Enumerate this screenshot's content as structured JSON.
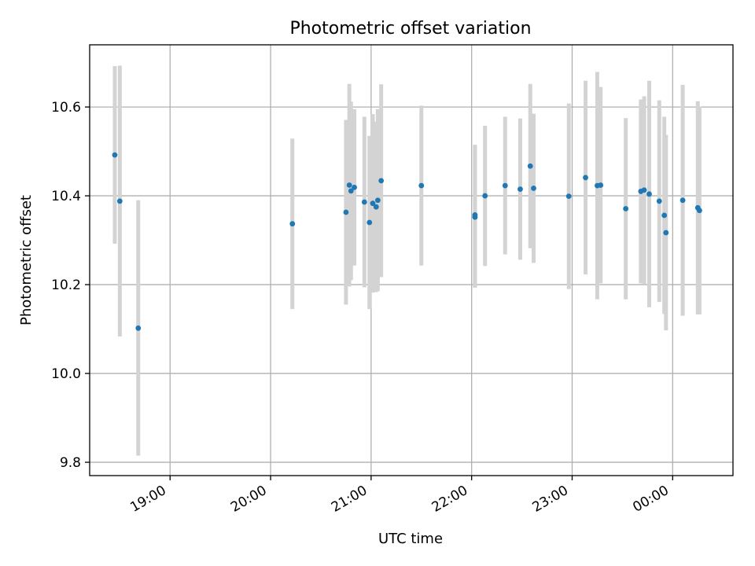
{
  "chart_data": {
    "type": "scatter",
    "title": "Photometric offset variation",
    "xlabel": "UTC time",
    "ylabel": "Photometric offset",
    "xlim": [
      "18:12",
      "00:36"
    ],
    "ylim": [
      9.77,
      10.74
    ],
    "grid": true,
    "x_ticks": [
      "19:00",
      "20:00",
      "21:00",
      "22:00",
      "23:00",
      "00:00"
    ],
    "y_ticks": [
      "9.8",
      "10.0",
      "10.2",
      "10.4",
      "10.6"
    ],
    "colors": {
      "point": "#1f77b4",
      "errorbar": "#d3d3d3",
      "grid": "#b0b0b0"
    },
    "series": [
      {
        "marker": "point",
        "error_bars": "vertical",
        "points": [
          {
            "t": "18:27",
            "y": 10.492,
            "lo": 10.292,
            "hi": 10.692
          },
          {
            "t": "18:30",
            "y": 10.388,
            "lo": 10.083,
            "hi": 10.693
          },
          {
            "t": "18:41",
            "y": 10.102,
            "lo": 9.815,
            "hi": 10.39
          },
          {
            "t": "20:13",
            "y": 10.337,
            "lo": 10.145,
            "hi": 10.529
          },
          {
            "t": "20:45",
            "y": 10.363,
            "lo": 10.155,
            "hi": 10.571
          },
          {
            "t": "20:47",
            "y": 10.424,
            "lo": 10.196,
            "hi": 10.652
          },
          {
            "t": "20:48",
            "y": 10.411,
            "lo": 10.21,
            "hi": 10.612
          },
          {
            "t": "20:50",
            "y": 10.419,
            "lo": 10.243,
            "hi": 10.595
          },
          {
            "t": "20:56",
            "y": 10.386,
            "lo": 10.194,
            "hi": 10.578
          },
          {
            "t": "20:59",
            "y": 10.34,
            "lo": 10.145,
            "hi": 10.535
          },
          {
            "t": "21:01",
            "y": 10.383,
            "lo": 10.182,
            "hi": 10.584
          },
          {
            "t": "21:03",
            "y": 10.375,
            "lo": 10.183,
            "hi": 10.567
          },
          {
            "t": "21:04",
            "y": 10.39,
            "lo": 10.185,
            "hi": 10.595
          },
          {
            "t": "21:06",
            "y": 10.434,
            "lo": 10.217,
            "hi": 10.651
          },
          {
            "t": "21:30",
            "y": 10.423,
            "lo": 10.243,
            "hi": 10.603
          },
          {
            "t": "22:02",
            "y": 10.352,
            "lo": 10.193,
            "hi": 10.515
          },
          {
            "t": "22:02",
            "y": 10.357,
            "lo": 10.2,
            "hi": 10.514
          },
          {
            "t": "22:08",
            "y": 10.4,
            "lo": 10.242,
            "hi": 10.558
          },
          {
            "t": "22:20",
            "y": 10.423,
            "lo": 10.268,
            "hi": 10.578
          },
          {
            "t": "22:29",
            "y": 10.415,
            "lo": 10.256,
            "hi": 10.574
          },
          {
            "t": "22:35",
            "y": 10.467,
            "lo": 10.282,
            "hi": 10.652
          },
          {
            "t": "22:37",
            "y": 10.417,
            "lo": 10.249,
            "hi": 10.585
          },
          {
            "t": "22:58",
            "y": 10.399,
            "lo": 10.19,
            "hi": 10.608
          },
          {
            "t": "23:08",
            "y": 10.441,
            "lo": 10.223,
            "hi": 10.659
          },
          {
            "t": "23:15",
            "y": 10.423,
            "lo": 10.167,
            "hi": 10.679
          },
          {
            "t": "23:17",
            "y": 10.424,
            "lo": 10.203,
            "hi": 10.645
          },
          {
            "t": "23:32",
            "y": 10.371,
            "lo": 10.167,
            "hi": 10.575
          },
          {
            "t": "23:41",
            "y": 10.41,
            "lo": 10.203,
            "hi": 10.617
          },
          {
            "t": "23:43",
            "y": 10.413,
            "lo": 10.202,
            "hi": 10.624
          },
          {
            "t": "23:46",
            "y": 10.404,
            "lo": 10.149,
            "hi": 10.659
          },
          {
            "t": "23:52",
            "y": 10.388,
            "lo": 10.161,
            "hi": 10.615
          },
          {
            "t": "23:55",
            "y": 10.356,
            "lo": 10.134,
            "hi": 10.578
          },
          {
            "t": "23:56",
            "y": 10.317,
            "lo": 10.097,
            "hi": 10.537
          },
          {
            "t": "00:06",
            "y": 10.39,
            "lo": 10.13,
            "hi": 10.65
          },
          {
            "t": "00:15",
            "y": 10.373,
            "lo": 10.133,
            "hi": 10.613
          },
          {
            "t": "00:16",
            "y": 10.367,
            "lo": 10.133,
            "hi": 10.601
          }
        ]
      }
    ]
  }
}
